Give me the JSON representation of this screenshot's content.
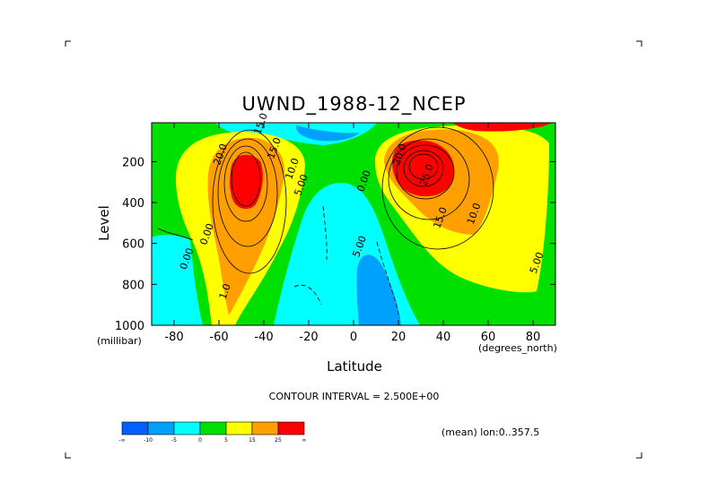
{
  "chart_data": {
    "type": "heatmap",
    "title": "UWND_1988-12_NCEP",
    "xlabel": "Latitude",
    "ylabel": "Level",
    "x_unit": "(degrees_north)",
    "y_unit": "(millibar)",
    "xlim": [
      -90,
      90
    ],
    "ylim": [
      1000,
      10
    ],
    "x_ticks": [
      -80,
      -60,
      -40,
      -20,
      0,
      20,
      40,
      60,
      80
    ],
    "y_ticks": [
      200,
      400,
      600,
      800,
      1000
    ],
    "contour_interval_text": "CONTOUR INTERVAL = 2.500E+00",
    "mean_text": "(mean) lon:0..357.5",
    "colorbar": {
      "colors": [
        "#005fff",
        "#00a0ff",
        "#00ffff",
        "#00e000",
        "#ffff00",
        "#ffa000",
        "#ff0000"
      ],
      "tick_labels": [
        "-∞",
        "-10",
        "-5",
        "0",
        "5",
        "15",
        "25",
        "∞"
      ]
    },
    "contour_labels": [
      {
        "text": "15.0",
        "lat": -40,
        "lev": 20
      },
      {
        "text": "20.0",
        "lat": -58,
        "lev": 170
      },
      {
        "text": "15.0",
        "lat": -34,
        "lev": 140
      },
      {
        "text": "10.0",
        "lat": -26,
        "lev": 240
      },
      {
        "text": "5.00",
        "lat": -22,
        "lev": 320
      },
      {
        "text": "0.00",
        "lat": 6,
        "lev": 300
      },
      {
        "text": "20.0",
        "lat": 22,
        "lev": 170
      },
      {
        "text": "25.0",
        "lat": 34,
        "lev": 270
      },
      {
        "text": "15.0",
        "lat": 40,
        "lev": 480
      },
      {
        "text": "10.0",
        "lat": 55,
        "lev": 460
      },
      {
        "text": "5.00",
        "lat": 4,
        "lev": 620
      },
      {
        "text": "0.00",
        "lat": -73,
        "lev": 680
      },
      {
        "text": "0.00",
        "lat": -64,
        "lev": 560
      },
      {
        "text": "1.0",
        "lat": -56,
        "lev": 840
      },
      {
        "text": "5.00",
        "lat": 83,
        "lev": 700
      }
    ]
  }
}
